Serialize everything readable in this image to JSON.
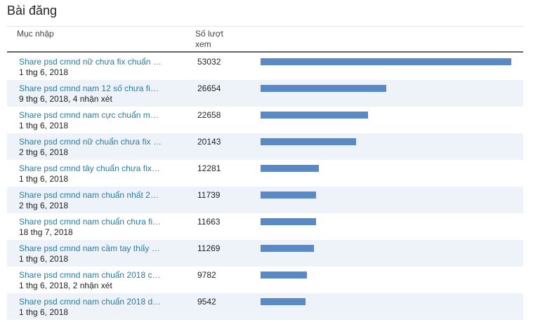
{
  "header": {
    "title": "Bài đăng"
  },
  "table": {
    "columns": [
      "Mục nhập",
      "Số lượt xem"
    ],
    "rows": [
      {
        "title": "Share psd cmnd nữ chưa fix chuẩn …",
        "meta": "1 thg 6, 2018",
        "views": 53032
      },
      {
        "title": "Share psd cmnd nam 12 số chưa fi…",
        "meta": "9 thg 6, 2018, 4 nhận xét",
        "views": 26654
      },
      {
        "title": "Share psd cmnd nam cực chuẩn m…",
        "meta": "1 thg 6, 2018",
        "views": 22658
      },
      {
        "title": "Share psd cmnd nữ chuẩn chưa fix …",
        "meta": "2 thg 6, 2018",
        "views": 20143
      },
      {
        "title": "Share psd cmnd tây chuẩn chưa fix…",
        "meta": "1 thg 6, 2018",
        "views": 12281
      },
      {
        "title": "Share psd cmnd nam chuẩn nhất 2…",
        "meta": "2 thg 6, 2018",
        "views": 11739
      },
      {
        "title": "Share psd cmnd nam chuẩn chưa fi…",
        "meta": "18 thg 7, 2018",
        "views": 11663
      },
      {
        "title": "Share psd cmnd nam cầm tay thấy …",
        "meta": "1 thg 6, 2018",
        "views": 11269
      },
      {
        "title": "Share psd cmnd nam chuẩn 2018 c…",
        "meta": "1 thg 6, 2018, 2 nhận xét",
        "views": 9782
      },
      {
        "title": "Share psd cmnd nam chuẩn 2018 d…",
        "meta": "1 thg 6, 2018",
        "views": 9542
      }
    ]
  }
}
